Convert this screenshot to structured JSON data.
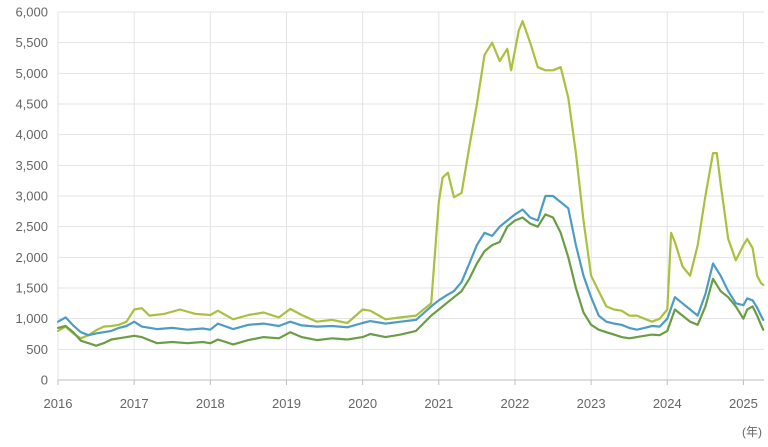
{
  "chart_data": {
    "type": "line",
    "title": "",
    "xlabel": "",
    "ylabel": "",
    "x_unit_label": "(年)",
    "xlim": [
      2016.0,
      2025.27
    ],
    "ylim": [
      0,
      6000
    ],
    "grid": true,
    "legend": "none",
    "x_ticks": [
      {
        "value": 2016,
        "label": "2016"
      },
      {
        "value": 2017,
        "label": "2017"
      },
      {
        "value": 2018,
        "label": "2018"
      },
      {
        "value": 2019,
        "label": "2019"
      },
      {
        "value": 2020,
        "label": "2020"
      },
      {
        "value": 2021,
        "label": "2021"
      },
      {
        "value": 2022,
        "label": "2022"
      },
      {
        "value": 2023,
        "label": "2023"
      },
      {
        "value": 2024,
        "label": "2024"
      },
      {
        "value": 2025,
        "label": "2025"
      }
    ],
    "y_ticks": [
      {
        "value": 0,
        "label": "0"
      },
      {
        "value": 500,
        "label": "500"
      },
      {
        "value": 1000,
        "label": "1,000"
      },
      {
        "value": 1500,
        "label": "1,500"
      },
      {
        "value": 2000,
        "label": "2,000"
      },
      {
        "value": 2500,
        "label": "2,500"
      },
      {
        "value": 3000,
        "label": "3,000"
      },
      {
        "value": 3500,
        "label": "3,500"
      },
      {
        "value": 4000,
        "label": "4,000"
      },
      {
        "value": 4500,
        "label": "4,500"
      },
      {
        "value": 5000,
        "label": "5,000"
      },
      {
        "value": 5500,
        "label": "5,500"
      },
      {
        "value": 6000,
        "label": "6,000"
      }
    ],
    "series": [
      {
        "color": "#a8c13e",
        "points": [
          [
            2016.0,
            800
          ],
          [
            2016.1,
            870
          ],
          [
            2016.2,
            760
          ],
          [
            2016.3,
            680
          ],
          [
            2016.4,
            730
          ],
          [
            2016.5,
            810
          ],
          [
            2016.6,
            870
          ],
          [
            2016.7,
            880
          ],
          [
            2016.8,
            900
          ],
          [
            2016.9,
            950
          ],
          [
            2017.0,
            1150
          ],
          [
            2017.1,
            1170
          ],
          [
            2017.2,
            1050
          ],
          [
            2017.4,
            1080
          ],
          [
            2017.6,
            1150
          ],
          [
            2017.8,
            1080
          ],
          [
            2018.0,
            1060
          ],
          [
            2018.1,
            1130
          ],
          [
            2018.3,
            990
          ],
          [
            2018.5,
            1060
          ],
          [
            2018.7,
            1100
          ],
          [
            2018.9,
            1020
          ],
          [
            2019.05,
            1160
          ],
          [
            2019.2,
            1060
          ],
          [
            2019.4,
            950
          ],
          [
            2019.6,
            980
          ],
          [
            2019.8,
            930
          ],
          [
            2020.0,
            1150
          ],
          [
            2020.1,
            1130
          ],
          [
            2020.3,
            990
          ],
          [
            2020.5,
            1020
          ],
          [
            2020.7,
            1050
          ],
          [
            2020.9,
            1250
          ],
          [
            2021.0,
            2900
          ],
          [
            2021.05,
            3300
          ],
          [
            2021.12,
            3380
          ],
          [
            2021.2,
            2980
          ],
          [
            2021.3,
            3050
          ],
          [
            2021.4,
            3800
          ],
          [
            2021.5,
            4500
          ],
          [
            2021.6,
            5300
          ],
          [
            2021.7,
            5500
          ],
          [
            2021.8,
            5200
          ],
          [
            2021.9,
            5400
          ],
          [
            2021.95,
            5050
          ],
          [
            2022.05,
            5700
          ],
          [
            2022.1,
            5850
          ],
          [
            2022.2,
            5500
          ],
          [
            2022.3,
            5100
          ],
          [
            2022.4,
            5050
          ],
          [
            2022.5,
            5050
          ],
          [
            2022.6,
            5100
          ],
          [
            2022.7,
            4600
          ],
          [
            2022.8,
            3700
          ],
          [
            2022.9,
            2600
          ],
          [
            2023.0,
            1700
          ],
          [
            2023.1,
            1450
          ],
          [
            2023.2,
            1200
          ],
          [
            2023.3,
            1150
          ],
          [
            2023.4,
            1130
          ],
          [
            2023.5,
            1050
          ],
          [
            2023.6,
            1050
          ],
          [
            2023.7,
            1000
          ],
          [
            2023.8,
            950
          ],
          [
            2023.9,
            1000
          ],
          [
            2024.0,
            1150
          ],
          [
            2024.05,
            2400
          ],
          [
            2024.1,
            2250
          ],
          [
            2024.2,
            1850
          ],
          [
            2024.3,
            1700
          ],
          [
            2024.4,
            2200
          ],
          [
            2024.5,
            3000
          ],
          [
            2024.6,
            3700
          ],
          [
            2024.65,
            3700
          ],
          [
            2024.7,
            3200
          ],
          [
            2024.8,
            2300
          ],
          [
            2024.9,
            1950
          ],
          [
            2025.0,
            2200
          ],
          [
            2025.05,
            2300
          ],
          [
            2025.12,
            2150
          ],
          [
            2025.18,
            1700
          ],
          [
            2025.23,
            1580
          ],
          [
            2025.26,
            1550
          ]
        ]
      },
      {
        "color": "#4c9cc5",
        "points": [
          [
            2016.0,
            950
          ],
          [
            2016.1,
            1020
          ],
          [
            2016.2,
            890
          ],
          [
            2016.3,
            780
          ],
          [
            2016.4,
            730
          ],
          [
            2016.5,
            760
          ],
          [
            2016.6,
            780
          ],
          [
            2016.7,
            800
          ],
          [
            2016.8,
            850
          ],
          [
            2016.9,
            880
          ],
          [
            2017.0,
            950
          ],
          [
            2017.1,
            870
          ],
          [
            2017.3,
            830
          ],
          [
            2017.5,
            850
          ],
          [
            2017.7,
            820
          ],
          [
            2017.9,
            840
          ],
          [
            2018.0,
            820
          ],
          [
            2018.1,
            920
          ],
          [
            2018.3,
            830
          ],
          [
            2018.5,
            900
          ],
          [
            2018.7,
            920
          ],
          [
            2018.9,
            880
          ],
          [
            2019.05,
            950
          ],
          [
            2019.2,
            890
          ],
          [
            2019.4,
            870
          ],
          [
            2019.6,
            880
          ],
          [
            2019.8,
            860
          ],
          [
            2020.0,
            930
          ],
          [
            2020.1,
            960
          ],
          [
            2020.3,
            920
          ],
          [
            2020.5,
            950
          ],
          [
            2020.7,
            980
          ],
          [
            2020.9,
            1200
          ],
          [
            2021.0,
            1300
          ],
          [
            2021.1,
            1380
          ],
          [
            2021.2,
            1450
          ],
          [
            2021.3,
            1600
          ],
          [
            2021.4,
            1900
          ],
          [
            2021.5,
            2200
          ],
          [
            2021.6,
            2400
          ],
          [
            2021.7,
            2350
          ],
          [
            2021.8,
            2500
          ],
          [
            2021.9,
            2600
          ],
          [
            2022.0,
            2700
          ],
          [
            2022.1,
            2780
          ],
          [
            2022.2,
            2650
          ],
          [
            2022.3,
            2600
          ],
          [
            2022.4,
            3000
          ],
          [
            2022.5,
            3000
          ],
          [
            2022.6,
            2900
          ],
          [
            2022.7,
            2800
          ],
          [
            2022.8,
            2200
          ],
          [
            2022.9,
            1700
          ],
          [
            2023.0,
            1350
          ],
          [
            2023.1,
            1050
          ],
          [
            2023.2,
            950
          ],
          [
            2023.3,
            920
          ],
          [
            2023.4,
            900
          ],
          [
            2023.5,
            850
          ],
          [
            2023.6,
            820
          ],
          [
            2023.7,
            850
          ],
          [
            2023.8,
            880
          ],
          [
            2023.9,
            870
          ],
          [
            2024.0,
            1000
          ],
          [
            2024.1,
            1350
          ],
          [
            2024.2,
            1250
          ],
          [
            2024.3,
            1150
          ],
          [
            2024.4,
            1050
          ],
          [
            2024.5,
            1400
          ],
          [
            2024.6,
            1900
          ],
          [
            2024.7,
            1700
          ],
          [
            2024.8,
            1450
          ],
          [
            2024.9,
            1250
          ],
          [
            2025.0,
            1220
          ],
          [
            2025.05,
            1330
          ],
          [
            2025.12,
            1300
          ],
          [
            2025.18,
            1180
          ],
          [
            2025.23,
            1050
          ],
          [
            2025.26,
            980
          ]
        ]
      },
      {
        "color": "#6a9e45",
        "points": [
          [
            2016.0,
            850
          ],
          [
            2016.1,
            880
          ],
          [
            2016.2,
            780
          ],
          [
            2016.3,
            640
          ],
          [
            2016.4,
            600
          ],
          [
            2016.5,
            560
          ],
          [
            2016.6,
            600
          ],
          [
            2016.7,
            660
          ],
          [
            2016.8,
            680
          ],
          [
            2016.9,
            700
          ],
          [
            2017.0,
            720
          ],
          [
            2017.1,
            700
          ],
          [
            2017.3,
            600
          ],
          [
            2017.5,
            620
          ],
          [
            2017.7,
            600
          ],
          [
            2017.9,
            620
          ],
          [
            2018.0,
            600
          ],
          [
            2018.1,
            660
          ],
          [
            2018.3,
            580
          ],
          [
            2018.5,
            650
          ],
          [
            2018.7,
            700
          ],
          [
            2018.9,
            680
          ],
          [
            2019.05,
            780
          ],
          [
            2019.2,
            700
          ],
          [
            2019.4,
            650
          ],
          [
            2019.6,
            680
          ],
          [
            2019.8,
            660
          ],
          [
            2020.0,
            700
          ],
          [
            2020.1,
            750
          ],
          [
            2020.3,
            700
          ],
          [
            2020.5,
            740
          ],
          [
            2020.7,
            800
          ],
          [
            2020.9,
            1050
          ],
          [
            2021.0,
            1150
          ],
          [
            2021.1,
            1250
          ],
          [
            2021.2,
            1350
          ],
          [
            2021.3,
            1450
          ],
          [
            2021.4,
            1650
          ],
          [
            2021.5,
            1900
          ],
          [
            2021.6,
            2100
          ],
          [
            2021.7,
            2200
          ],
          [
            2021.8,
            2250
          ],
          [
            2021.9,
            2500
          ],
          [
            2022.0,
            2600
          ],
          [
            2022.1,
            2650
          ],
          [
            2022.2,
            2550
          ],
          [
            2022.3,
            2500
          ],
          [
            2022.4,
            2700
          ],
          [
            2022.5,
            2650
          ],
          [
            2022.6,
            2400
          ],
          [
            2022.7,
            2000
          ],
          [
            2022.8,
            1500
          ],
          [
            2022.9,
            1100
          ],
          [
            2023.0,
            900
          ],
          [
            2023.1,
            820
          ],
          [
            2023.2,
            780
          ],
          [
            2023.3,
            740
          ],
          [
            2023.4,
            700
          ],
          [
            2023.5,
            680
          ],
          [
            2023.6,
            700
          ],
          [
            2023.7,
            720
          ],
          [
            2023.8,
            740
          ],
          [
            2023.9,
            730
          ],
          [
            2024.0,
            800
          ],
          [
            2024.1,
            1150
          ],
          [
            2024.2,
            1050
          ],
          [
            2024.3,
            950
          ],
          [
            2024.4,
            900
          ],
          [
            2024.5,
            1200
          ],
          [
            2024.6,
            1650
          ],
          [
            2024.7,
            1450
          ],
          [
            2024.8,
            1350
          ],
          [
            2024.9,
            1200
          ],
          [
            2025.0,
            1000
          ],
          [
            2025.05,
            1150
          ],
          [
            2025.12,
            1200
          ],
          [
            2025.18,
            1050
          ],
          [
            2025.23,
            900
          ],
          [
            2025.26,
            820
          ]
        ]
      }
    ]
  }
}
